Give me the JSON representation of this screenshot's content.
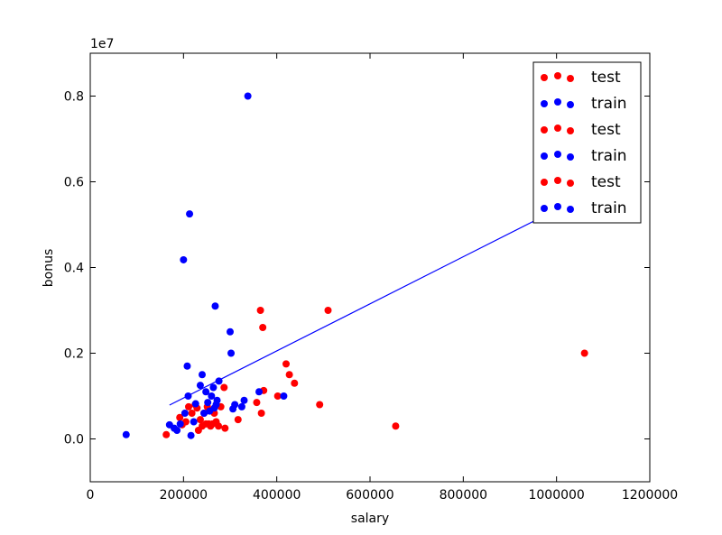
{
  "chart_data": {
    "type": "scatter",
    "xlabel": "salary",
    "ylabel": "bonus",
    "y_scale_label": "1e7",
    "xlim": [
      0,
      1200000
    ],
    "ylim": [
      -0.1,
      0.9
    ],
    "xticks": [
      0,
      200000,
      400000,
      600000,
      800000,
      1000000,
      1200000
    ],
    "yticks": [
      0.0,
      0.2,
      0.4,
      0.6,
      0.8
    ],
    "xtick_labels": [
      "0",
      "200000",
      "400000",
      "600000",
      "800000",
      "1000000",
      "1200000"
    ],
    "ytick_labels": [
      "0.0",
      "0.2",
      "0.4",
      "0.6",
      "0.8"
    ],
    "grid": false,
    "legend_position": "top-right",
    "legend": [
      {
        "label": "test",
        "color": "#ff0000"
      },
      {
        "label": "train",
        "color": "#0000ff"
      },
      {
        "label": "test",
        "color": "#ff0000"
      },
      {
        "label": "train",
        "color": "#0000ff"
      },
      {
        "label": "test",
        "color": "#ff0000"
      },
      {
        "label": "train",
        "color": "#0000ff"
      }
    ],
    "regression_line": {
      "color": "#0000ff",
      "x": [
        170000,
        1000000
      ],
      "y": [
        0.079,
        0.535
      ]
    },
    "series": [
      {
        "name": "test",
        "color": "#ff0000",
        "points": [
          [
            163000,
            0.01
          ],
          [
            192000,
            0.05
          ],
          [
            197000,
            0.033
          ],
          [
            205000,
            0.04
          ],
          [
            211000,
            0.075
          ],
          [
            218000,
            0.06
          ],
          [
            225000,
            0.08
          ],
          [
            229000,
            0.072
          ],
          [
            232000,
            0.02
          ],
          [
            236000,
            0.045
          ],
          [
            240000,
            0.03
          ],
          [
            244000,
            0.06
          ],
          [
            248000,
            0.035
          ],
          [
            251000,
            0.075
          ],
          [
            254000,
            0.035
          ],
          [
            258000,
            0.03
          ],
          [
            262000,
            0.035
          ],
          [
            266000,
            0.06
          ],
          [
            270000,
            0.04
          ],
          [
            275000,
            0.03
          ],
          [
            280000,
            0.075
          ],
          [
            287000,
            0.12
          ],
          [
            289000,
            0.025
          ],
          [
            317000,
            0.045
          ],
          [
            357000,
            0.085
          ],
          [
            365000,
            0.3
          ],
          [
            367000,
            0.06
          ],
          [
            370000,
            0.26
          ],
          [
            372000,
            0.113
          ],
          [
            402000,
            0.1
          ],
          [
            420000,
            0.175
          ],
          [
            427000,
            0.15
          ],
          [
            438000,
            0.13
          ],
          [
            492000,
            0.08
          ],
          [
            510000,
            0.3
          ],
          [
            655000,
            0.03
          ],
          [
            1060000,
            0.2
          ]
        ]
      },
      {
        "name": "train",
        "color": "#0000ff",
        "points": [
          [
            77000,
            0.01
          ],
          [
            170000,
            0.033
          ],
          [
            180000,
            0.025
          ],
          [
            186000,
            0.02
          ],
          [
            193000,
            0.035
          ],
          [
            200000,
            0.418
          ],
          [
            203000,
            0.06
          ],
          [
            208000,
            0.17
          ],
          [
            210000,
            0.1
          ],
          [
            213000,
            0.525
          ],
          [
            216000,
            0.008
          ],
          [
            222000,
            0.04
          ],
          [
            226000,
            0.082
          ],
          [
            236000,
            0.125
          ],
          [
            240000,
            0.15
          ],
          [
            244000,
            0.06
          ],
          [
            248000,
            0.11
          ],
          [
            252000,
            0.085
          ],
          [
            256000,
            0.065
          ],
          [
            260000,
            0.1
          ],
          [
            264000,
            0.12
          ],
          [
            266000,
            0.072
          ],
          [
            268000,
            0.31
          ],
          [
            270000,
            0.08
          ],
          [
            272000,
            0.09
          ],
          [
            276000,
            0.135
          ],
          [
            300000,
            0.25
          ],
          [
            302000,
            0.2
          ],
          [
            306000,
            0.07
          ],
          [
            310000,
            0.08
          ],
          [
            325000,
            0.075
          ],
          [
            330000,
            0.09
          ],
          [
            338000,
            0.8
          ],
          [
            362000,
            0.11
          ],
          [
            415000,
            0.1
          ]
        ]
      }
    ]
  }
}
